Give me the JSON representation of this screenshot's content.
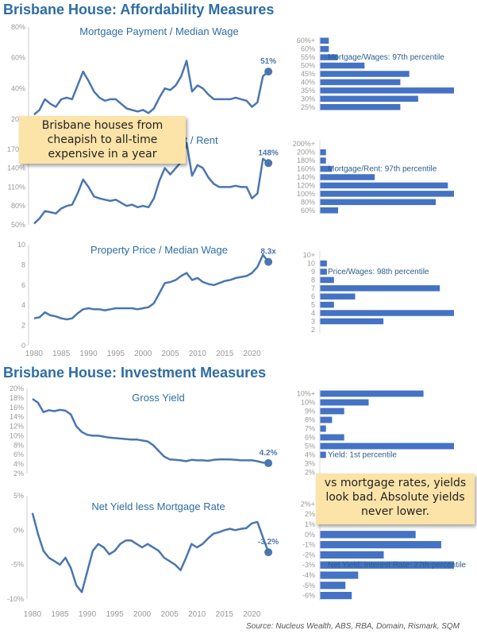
{
  "sections": {
    "affordability_title": "Brisbane House: Affordability Measures",
    "investment_title": "Brisbane House: Investment Measures"
  },
  "callouts": {
    "affordability": "Brisbane houses from cheapish to all-time expensive in a year",
    "investment": "vs mortgage rates, yields look bad. Absolute yields never lower."
  },
  "source": "Source: Nucleus Wealth, ABS, RBA, Domain, Rismark, SQM",
  "colors": {
    "line": "#4A76B0",
    "bar": "#4472C4",
    "title": "#2E6DA4",
    "axis": "#999999"
  },
  "chart_data": [
    {
      "type": "line",
      "title": "Mortgage Payment / Median Wage",
      "ylim": [
        0.2,
        0.8
      ],
      "yticks": [
        0.2,
        0.4,
        0.6,
        0.8
      ],
      "ytick_labels": [
        "20%",
        "40%",
        "60%",
        "80%"
      ],
      "end_label": "51%",
      "x": [
        1980,
        1981,
        1982,
        1983,
        1984,
        1985,
        1986,
        1987,
        1988,
        1989,
        1990,
        1991,
        1992,
        1993,
        1994,
        1995,
        1996,
        1997,
        1998,
        1999,
        2000,
        2001,
        2002,
        2003,
        2004,
        2005,
        2006,
        2007,
        2008,
        2009,
        2010,
        2011,
        2012,
        2013,
        2014,
        2015,
        2016,
        2017,
        2018,
        2019,
        2020,
        2021,
        2022,
        2023
      ],
      "y": [
        0.23,
        0.26,
        0.33,
        0.3,
        0.28,
        0.33,
        0.34,
        0.33,
        0.42,
        0.51,
        0.45,
        0.38,
        0.34,
        0.32,
        0.33,
        0.33,
        0.3,
        0.27,
        0.26,
        0.25,
        0.26,
        0.24,
        0.27,
        0.34,
        0.4,
        0.39,
        0.42,
        0.48,
        0.58,
        0.38,
        0.42,
        0.4,
        0.36,
        0.33,
        0.33,
        0.33,
        0.33,
        0.34,
        0.33,
        0.32,
        0.28,
        0.31,
        0.48,
        0.51
      ]
    },
    {
      "type": "bar",
      "categories": [
        "25%",
        "30%",
        "35%",
        "40%",
        "45%",
        "50%",
        "55%",
        "60%",
        "60%+"
      ],
      "values": [
        9,
        11,
        15,
        9,
        10,
        5,
        2,
        1,
        1
      ],
      "annotation": "Mortgage/Wages: 97th percentile",
      "highlight": "55%"
    },
    {
      "type": "line",
      "title": "Mortgage Payment / Rent",
      "ylim": [
        0.5,
        1.9
      ],
      "yticks": [
        0.5,
        0.8,
        1.1,
        1.4,
        1.7
      ],
      "ytick_labels": [
        "50%",
        "80%",
        "110%",
        "140%",
        "170%"
      ],
      "end_label": "148%",
      "x": [
        1980,
        1981,
        1982,
        1983,
        1984,
        1985,
        1986,
        1987,
        1988,
        1989,
        1990,
        1991,
        1992,
        1993,
        1994,
        1995,
        1996,
        1997,
        1998,
        1999,
        2000,
        2001,
        2002,
        2003,
        2004,
        2005,
        2006,
        2007,
        2008,
        2009,
        2010,
        2011,
        2012,
        2013,
        2014,
        2015,
        2016,
        2017,
        2018,
        2019,
        2020,
        2021,
        2022,
        2023
      ],
      "y": [
        0.52,
        0.6,
        0.72,
        0.7,
        0.68,
        0.76,
        0.8,
        0.82,
        1.0,
        1.22,
        1.1,
        0.95,
        0.92,
        0.9,
        0.88,
        0.9,
        0.85,
        0.8,
        0.82,
        0.78,
        0.8,
        0.78,
        0.92,
        1.2,
        1.4,
        1.3,
        1.4,
        1.5,
        1.8,
        1.28,
        1.45,
        1.4,
        1.25,
        1.15,
        1.1,
        1.1,
        1.1,
        1.12,
        1.1,
        1.1,
        0.92,
        1.0,
        1.55,
        1.48
      ]
    },
    {
      "type": "bar",
      "categories": [
        "60%",
        "80%",
        "100%",
        "120%",
        "140%",
        "160%",
        "180%",
        "200%",
        "200%+"
      ],
      "values": [
        3,
        19,
        22,
        21,
        9,
        2,
        1,
        1,
        0
      ],
      "annotation": "Mortgage/Rent: 97th percentile",
      "highlight": "160%"
    },
    {
      "type": "line",
      "title": "Property Price / Median Wage",
      "ylim": [
        0,
        10
      ],
      "yticks": [
        0,
        2,
        4,
        6,
        8,
        10
      ],
      "ytick_labels": [
        "0",
        "2",
        "4",
        "6",
        "8",
        "10"
      ],
      "end_label": "8.3x",
      "x": [
        1980,
        1981,
        1982,
        1983,
        1984,
        1985,
        1986,
        1987,
        1988,
        1989,
        1990,
        1991,
        1992,
        1993,
        1994,
        1995,
        1996,
        1997,
        1998,
        1999,
        2000,
        2001,
        2002,
        2003,
        2004,
        2005,
        2006,
        2007,
        2008,
        2009,
        2010,
        2011,
        2012,
        2013,
        2014,
        2015,
        2016,
        2017,
        2018,
        2019,
        2020,
        2021,
        2022,
        2023
      ],
      "y": [
        2.7,
        2.8,
        3.3,
        3.0,
        2.9,
        2.7,
        2.6,
        2.7,
        3.2,
        3.6,
        3.7,
        3.6,
        3.6,
        3.5,
        3.6,
        3.7,
        3.7,
        3.7,
        3.7,
        3.6,
        3.7,
        3.8,
        4.2,
        5.2,
        6.2,
        6.3,
        6.5,
        6.9,
        7.2,
        6.5,
        6.7,
        6.3,
        6.1,
        6.0,
        6.2,
        6.4,
        6.5,
        6.7,
        6.8,
        6.9,
        7.2,
        7.8,
        9.0,
        8.3
      ]
    },
    {
      "type": "bar",
      "categories": [
        "2",
        "3",
        "4",
        "5",
        "6",
        "7",
        "8",
        "9",
        "10",
        "10+"
      ],
      "values": [
        0,
        9,
        19,
        2,
        5,
        17,
        2,
        1,
        1,
        0
      ],
      "annotation": "Price/Wages: 98th percentile",
      "highlight": "9"
    },
    {
      "type": "line",
      "title": "Gross Yield",
      "ylim": [
        0.02,
        0.2
      ],
      "yticks": [
        0.02,
        0.04,
        0.06,
        0.08,
        0.1,
        0.12,
        0.14,
        0.16,
        0.18,
        0.2
      ],
      "ytick_labels": [
        "2%",
        "4%",
        "6%",
        "8%",
        "10%",
        "12%",
        "14%",
        "16%",
        "18%",
        "20%"
      ],
      "end_label": "4.2%",
      "x": [
        1980,
        1981,
        1982,
        1983,
        1984,
        1985,
        1986,
        1987,
        1988,
        1989,
        1990,
        1991,
        1992,
        1993,
        1994,
        1995,
        1996,
        1997,
        1998,
        1999,
        2000,
        2001,
        2002,
        2003,
        2004,
        2005,
        2006,
        2007,
        2008,
        2009,
        2010,
        2011,
        2012,
        2013,
        2014,
        2015,
        2016,
        2017,
        2018,
        2019,
        2020,
        2021,
        2022,
        2023
      ],
      "y": [
        0.178,
        0.17,
        0.15,
        0.154,
        0.152,
        0.155,
        0.153,
        0.145,
        0.12,
        0.108,
        0.102,
        0.1,
        0.1,
        0.098,
        0.096,
        0.095,
        0.094,
        0.093,
        0.092,
        0.092,
        0.09,
        0.088,
        0.08,
        0.068,
        0.056,
        0.05,
        0.049,
        0.048,
        0.046,
        0.049,
        0.048,
        0.048,
        0.047,
        0.049,
        0.05,
        0.05,
        0.05,
        0.049,
        0.048,
        0.048,
        0.048,
        0.046,
        0.043,
        0.042
      ]
    },
    {
      "type": "bar",
      "categories": [
        "2%",
        "3%",
        "4%",
        "5%",
        "6%",
        "7%",
        "8%",
        "9%",
        "10%",
        "10%+"
      ],
      "values": [
        0,
        0,
        1,
        22,
        4,
        1,
        2,
        4,
        8,
        17
      ],
      "annotation": "Yield: 1st percentile",
      "highlight": "4%"
    },
    {
      "type": "line",
      "title": "Net Yield less Mortgage Rate",
      "ylim": [
        -0.1,
        0.05
      ],
      "yticks": [
        -0.1,
        -0.05,
        0.0,
        0.05
      ],
      "ytick_labels": [
        "-10%",
        "-5%",
        "0%",
        "5%"
      ],
      "end_label": "-3.2%",
      "x": [
        1980,
        1981,
        1982,
        1983,
        1984,
        1985,
        1986,
        1987,
        1988,
        1989,
        1990,
        1991,
        1992,
        1993,
        1994,
        1995,
        1996,
        1997,
        1998,
        1999,
        2000,
        2001,
        2002,
        2003,
        2004,
        2005,
        2006,
        2007,
        2008,
        2009,
        2010,
        2011,
        2012,
        2013,
        2014,
        2015,
        2016,
        2017,
        2018,
        2019,
        2020,
        2021,
        2022,
        2023
      ],
      "y": [
        0.025,
        -0.005,
        -0.03,
        -0.04,
        -0.045,
        -0.05,
        -0.04,
        -0.055,
        -0.08,
        -0.09,
        -0.06,
        -0.03,
        -0.02,
        -0.025,
        -0.035,
        -0.03,
        -0.02,
        -0.015,
        -0.015,
        -0.02,
        -0.025,
        -0.02,
        -0.025,
        -0.03,
        -0.04,
        -0.045,
        -0.05,
        -0.058,
        -0.04,
        -0.02,
        -0.025,
        -0.02,
        -0.012,
        -0.005,
        -0.003,
        0.0,
        0.002,
        0.0,
        0.002,
        0.003,
        0.01,
        0.012,
        -0.01,
        -0.032
      ]
    },
    {
      "type": "bar",
      "categories": [
        "-6%",
        "-5%",
        "-4%",
        "-3%",
        "-2%",
        "-1%",
        "0%",
        "1%",
        "2%",
        "2%+"
      ],
      "values": [
        5,
        4,
        6,
        21,
        10,
        19,
        15,
        0,
        0,
        0
      ],
      "annotation": "Net Yield: Interest Rate: 27th percentile",
      "highlight": "-3%"
    }
  ],
  "shared_x": {
    "xlim": [
      1979,
      2024
    ],
    "xticks": [
      "1980",
      "1985",
      "1990",
      "1995",
      "2000",
      "2005",
      "2010",
      "2015",
      "2020"
    ]
  }
}
